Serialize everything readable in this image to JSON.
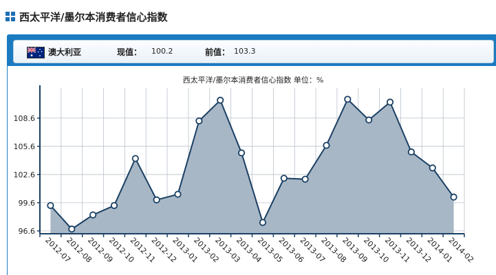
{
  "page": {
    "title": "西太平洋/墨尔本消费者信心指数"
  },
  "info": {
    "country": "澳大利亚",
    "current_label": "现值：",
    "current_value": "100.2",
    "previous_label": "前值：",
    "previous_value": "103.3"
  },
  "chart_data": {
    "type": "area",
    "title": "西太平洋/墨尔本消费者信心指数 单位：%",
    "categories": [
      "2012-07",
      "2012-08",
      "2012-09",
      "2012-10",
      "2012-11",
      "2012-12",
      "2013-01",
      "2013-02",
      "2013-03",
      "2013-04",
      "2013-05",
      "2013-06",
      "2013-07",
      "2013-08",
      "2013-09",
      "2013-10",
      "2013-11",
      "2013-12",
      "2014-01",
      "2014-02"
    ],
    "series": [
      {
        "values": [
          99.3,
          96.8,
          98.3,
          99.3,
          104.3,
          99.9,
          100.5,
          108.3,
          110.5,
          104.9,
          97.5,
          102.2,
          102.1,
          105.7,
          110.6,
          108.4,
          110.3,
          105.0,
          103.3,
          100.2
        ]
      }
    ],
    "yticks": [
      "96.6",
      "99.6",
      "102.6",
      "105.6",
      "108.6"
    ],
    "ylim": [
      96.3,
      111.8
    ],
    "grid": true,
    "colors": {
      "fill": "#a8b7c6",
      "line": "#1a3f63",
      "axis": "#1a3f63",
      "grid": "#b8c2cc"
    }
  }
}
